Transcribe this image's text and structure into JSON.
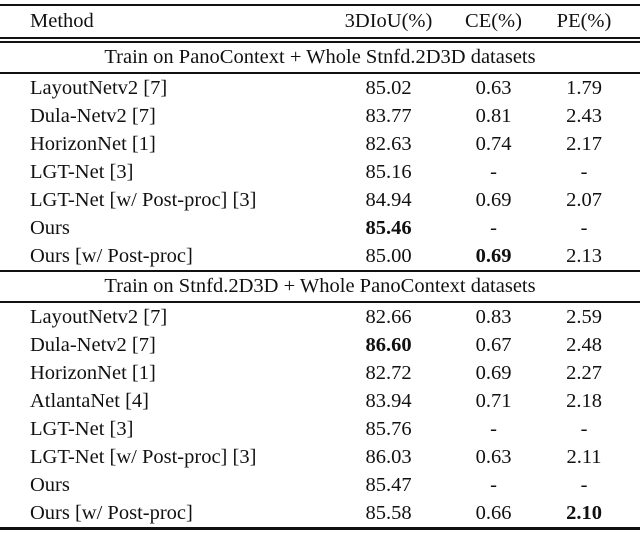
{
  "table": {
    "columns": [
      "Method",
      "3DIoU(%)",
      "CE(%)",
      "PE(%)"
    ],
    "sections": [
      {
        "title": "Train on PanoContext + Whole Stnfd.2D3D datasets",
        "rows": [
          {
            "cells": [
              "LayoutNetv2 [7]",
              "85.02",
              "0.63",
              "1.79"
            ],
            "bold": []
          },
          {
            "cells": [
              "Dula-Netv2 [7]",
              "83.77",
              "0.81",
              "2.43"
            ],
            "bold": []
          },
          {
            "cells": [
              "HorizonNet [1]",
              "82.63",
              "0.74",
              "2.17"
            ],
            "bold": []
          },
          {
            "cells": [
              "LGT-Net [3]",
              "85.16",
              "-",
              "-"
            ],
            "bold": []
          },
          {
            "cells": [
              "LGT-Net [w/ Post-proc] [3]",
              "84.94",
              "0.69",
              "2.07"
            ],
            "bold": []
          },
          {
            "cells": [
              "Ours",
              "85.46",
              "-",
              "-"
            ],
            "bold": [
              1
            ]
          },
          {
            "cells": [
              "Ours [w/ Post-proc]",
              "85.00",
              "0.69",
              "2.13"
            ],
            "bold": [
              2
            ]
          }
        ]
      },
      {
        "title": "Train on Stnfd.2D3D + Whole PanoContext datasets",
        "rows": [
          {
            "cells": [
              "LayoutNetv2 [7]",
              "82.66",
              "0.83",
              "2.59"
            ],
            "bold": []
          },
          {
            "cells": [
              "Dula-Netv2 [7]",
              "86.60",
              "0.67",
              "2.48"
            ],
            "bold": [
              1
            ]
          },
          {
            "cells": [
              "HorizonNet [1]",
              "82.72",
              "0.69",
              "2.27"
            ],
            "bold": []
          },
          {
            "cells": [
              "AtlantaNet [4]",
              "83.94",
              "0.71",
              "2.18"
            ],
            "bold": []
          },
          {
            "cells": [
              "LGT-Net [3]",
              "85.76",
              "-",
              "-"
            ],
            "bold": []
          },
          {
            "cells": [
              "LGT-Net [w/ Post-proc] [3]",
              "86.03",
              "0.63",
              "2.11"
            ],
            "bold": []
          },
          {
            "cells": [
              "Ours",
              "85.47",
              "-",
              "-"
            ],
            "bold": []
          },
          {
            "cells": [
              "Ours [w/ Post-proc]",
              "85.58",
              "0.66",
              "2.10"
            ],
            "bold": [
              3
            ]
          }
        ]
      }
    ]
  },
  "colors": {
    "text": "#111111",
    "background": "#ffffff",
    "rule": "#111111"
  }
}
